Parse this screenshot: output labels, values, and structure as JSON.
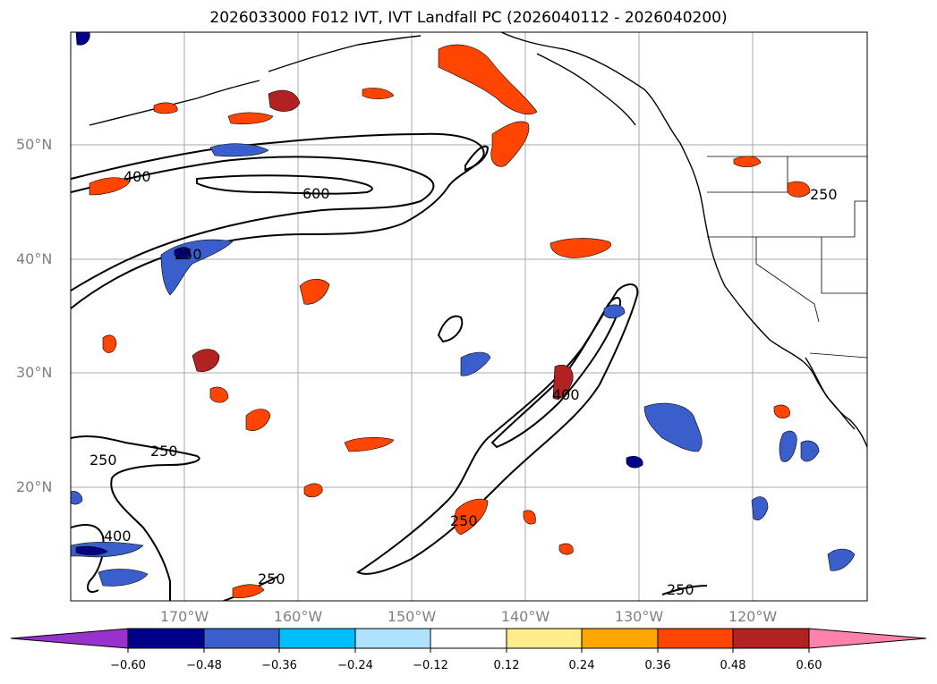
{
  "title": "2026033000 F012 IVT, IVT Landfall PC (2026040112 - 2026040200)",
  "latitude_labels": [
    "50°N",
    "40°N",
    "30°N",
    "20°N"
  ],
  "longitude_labels": [
    "170°W",
    "160°W",
    "150°W",
    "140°W",
    "130°W",
    "120°W"
  ],
  "contour_labels": [
    "400",
    "600",
    "250",
    "250",
    "400",
    "250",
    "250",
    "400",
    "250",
    "250",
    "250"
  ],
  "colorbar": {
    "ticks": [
      "−0.60",
      "−0.48",
      "−0.36",
      "−0.24",
      "−0.12",
      "0.12",
      "0.24",
      "0.36",
      "0.48",
      "0.60"
    ],
    "colors": [
      "#9932CC",
      "#00008B",
      "#3A5FCD",
      "#00BFFF",
      "#ADE3FF",
      "#FFFFFF",
      "#FFEC8B",
      "#FFA500",
      "#FF4500",
      "#B22222",
      "#FF82AB"
    ]
  }
}
